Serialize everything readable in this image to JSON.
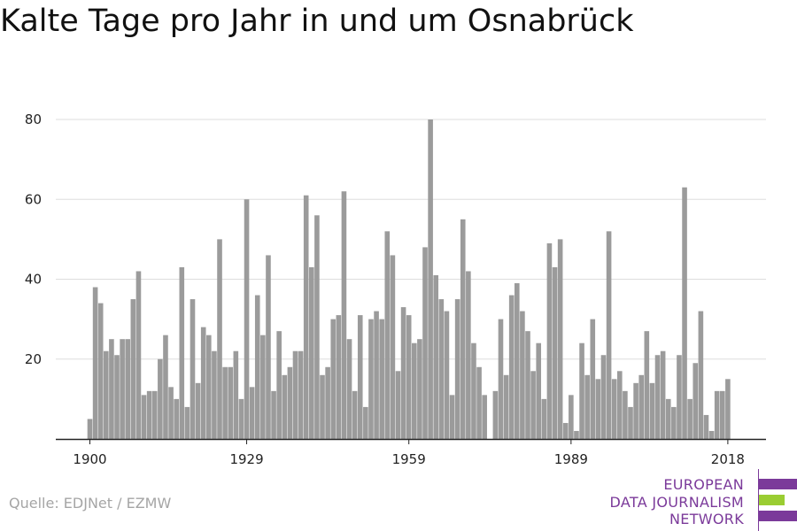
{
  "title": "Kalte Tage pro Jahr in und um Osnabrück",
  "source": "Quelle: EDJNet / EZMW",
  "logo": {
    "lines": [
      "EUROPEAN",
      "DATA JOURNALISM",
      "NETWORK"
    ],
    "colors": {
      "purple": "#7b3a9a",
      "green": "#9acd32"
    }
  },
  "colors": {
    "bar": "#9b9b9b",
    "grid": "#dddddd",
    "axis": "#222222"
  },
  "chart_data": {
    "type": "bar",
    "title": "Kalte Tage pro Jahr in und um Osnabrück",
    "xlabel": "",
    "ylabel": "",
    "x_tick_labels": [
      "1900",
      "1929",
      "1959",
      "1989",
      "2018"
    ],
    "y_ticks": [
      20,
      40,
      60,
      80
    ],
    "ylim": [
      0,
      80
    ],
    "grid": "horizontal",
    "legend": "none",
    "categories": [
      1900,
      1901,
      1902,
      1903,
      1904,
      1905,
      1906,
      1907,
      1908,
      1909,
      1910,
      1911,
      1912,
      1913,
      1914,
      1915,
      1916,
      1917,
      1918,
      1919,
      1920,
      1921,
      1922,
      1923,
      1924,
      1925,
      1926,
      1927,
      1928,
      1929,
      1930,
      1931,
      1932,
      1933,
      1934,
      1935,
      1936,
      1937,
      1938,
      1939,
      1940,
      1941,
      1942,
      1943,
      1944,
      1945,
      1946,
      1947,
      1948,
      1949,
      1950,
      1951,
      1952,
      1953,
      1954,
      1955,
      1956,
      1957,
      1958,
      1959,
      1960,
      1961,
      1962,
      1963,
      1964,
      1965,
      1966,
      1967,
      1968,
      1969,
      1970,
      1971,
      1972,
      1973,
      1974,
      1975,
      1976,
      1977,
      1978,
      1979,
      1980,
      1981,
      1982,
      1983,
      1984,
      1985,
      1986,
      1987,
      1988,
      1989,
      1990,
      1991,
      1992,
      1993,
      1994,
      1995,
      1996,
      1997,
      1998,
      1999,
      2000,
      2001,
      2002,
      2003,
      2004,
      2005,
      2006,
      2007,
      2008,
      2009,
      2010,
      2011,
      2012,
      2013,
      2014,
      2015,
      2016,
      2017,
      2018
    ],
    "values": [
      5,
      38,
      34,
      22,
      25,
      21,
      25,
      25,
      35,
      42,
      11,
      12,
      12,
      20,
      26,
      13,
      10,
      43,
      8,
      35,
      14,
      28,
      26,
      22,
      50,
      18,
      18,
      22,
      10,
      60,
      13,
      36,
      26,
      46,
      12,
      27,
      16,
      18,
      22,
      22,
      61,
      43,
      56,
      16,
      18,
      30,
      31,
      62,
      25,
      12,
      31,
      8,
      30,
      32,
      30,
      52,
      46,
      17,
      33,
      31,
      24,
      25,
      48,
      80,
      41,
      35,
      32,
      11,
      35,
      55,
      42,
      24,
      18,
      11,
      0,
      12,
      30,
      16,
      36,
      39,
      32,
      27,
      17,
      24,
      10,
      49,
      43,
      50,
      4,
      11,
      2,
      24,
      16,
      30,
      15,
      21,
      52,
      15,
      17,
      12,
      8,
      14,
      16,
      27,
      14,
      21,
      22,
      10,
      8,
      21,
      63,
      10,
      19,
      32,
      6,
      2,
      12,
      12,
      15
    ]
  }
}
